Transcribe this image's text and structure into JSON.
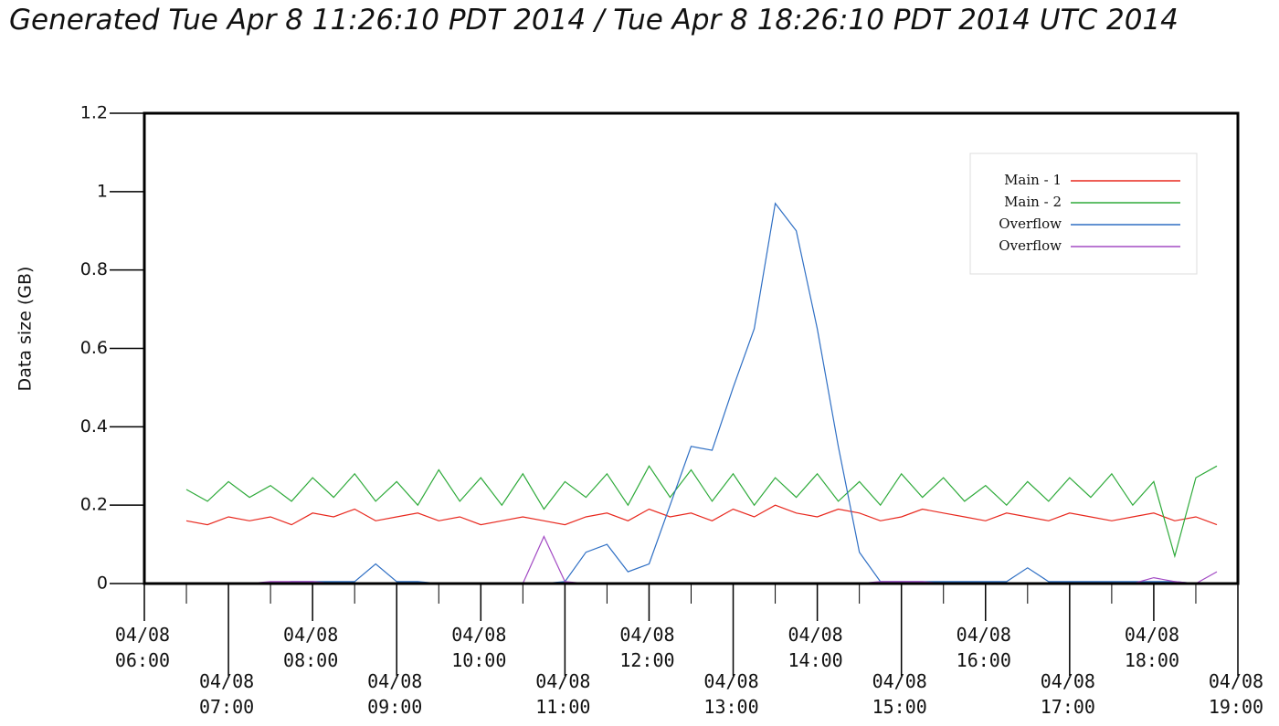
{
  "chart_data": {
    "type": "line",
    "title": "Generated Tue Apr 8 11:26:10 PDT 2014 / Tue Apr 8 18:26:10 PDT 2014 UTC 2014",
    "y_label": "Data size (GB)",
    "x": [
      6.5,
      6.75,
      7,
      7.25,
      7.5,
      7.75,
      8,
      8.25,
      8.5,
      8.75,
      9,
      9.25,
      9.5,
      9.75,
      10,
      10.25,
      10.5,
      10.75,
      11,
      11.25,
      11.5,
      11.75,
      12,
      12.25,
      12.5,
      12.75,
      13,
      13.25,
      13.5,
      13.75,
      14,
      14.25,
      14.5,
      14.75,
      15,
      15.25,
      15.5,
      15.75,
      16,
      16.25,
      16.5,
      16.75,
      17,
      17.25,
      17.5,
      17.75,
      18,
      18.25,
      18.5,
      18.75
    ],
    "series": [
      {
        "name": "Main - 1",
        "color": "#e8281e",
        "values": [
          0.16,
          0.15,
          0.17,
          0.16,
          0.17,
          0.15,
          0.18,
          0.17,
          0.19,
          0.16,
          0.17,
          0.18,
          0.16,
          0.17,
          0.15,
          0.16,
          0.17,
          0.16,
          0.15,
          0.17,
          0.18,
          0.16,
          0.19,
          0.17,
          0.18,
          0.16,
          0.19,
          0.17,
          0.2,
          0.18,
          0.17,
          0.19,
          0.18,
          0.16,
          0.17,
          0.19,
          0.18,
          0.17,
          0.16,
          0.18,
          0.17,
          0.16,
          0.18,
          0.17,
          0.16,
          0.17,
          0.18,
          0.16,
          0.17,
          0.15
        ]
      },
      {
        "name": "Main - 2",
        "color": "#2eaa3a",
        "values": [
          0.24,
          0.21,
          0.26,
          0.22,
          0.25,
          0.21,
          0.27,
          0.22,
          0.28,
          0.21,
          0.26,
          0.2,
          0.29,
          0.21,
          0.27,
          0.2,
          0.28,
          0.19,
          0.26,
          0.22,
          0.28,
          0.2,
          0.3,
          0.22,
          0.29,
          0.21,
          0.28,
          0.2,
          0.27,
          0.22,
          0.28,
          0.21,
          0.26,
          0.2,
          0.28,
          0.22,
          0.27,
          0.21,
          0.25,
          0.2,
          0.26,
          0.21,
          0.27,
          0.22,
          0.28,
          0.2,
          0.26,
          0.07,
          0.27,
          0.3
        ]
      },
      {
        "name": "Overflow",
        "color": "#2f6fc4",
        "values": [
          0,
          0,
          0,
          0,
          0,
          0.005,
          0.005,
          0.005,
          0.005,
          0.05,
          0.005,
          0.005,
          0,
          0,
          0,
          0,
          0,
          0,
          0.005,
          0.08,
          0.1,
          0.03,
          0.05,
          0.2,
          0.35,
          0.34,
          0.5,
          0.65,
          0.97,
          0.9,
          0.65,
          0.35,
          0.08,
          0.005,
          0.005,
          0.005,
          0.005,
          0.005,
          0.005,
          0.005,
          0.04,
          0.005,
          0.005,
          0.005,
          0.005,
          0.005,
          0.005,
          0.005,
          0,
          0
        ]
      },
      {
        "name": "Overflow",
        "color": "#a34bc4",
        "values": [
          0,
          0,
          0,
          0,
          0.005,
          0.005,
          0.005,
          0,
          0,
          0,
          0,
          0,
          0,
          0,
          0,
          0,
          0,
          0.12,
          0.005,
          0,
          0,
          0,
          0,
          0,
          0,
          0,
          0,
          0,
          0,
          0,
          0,
          0,
          0,
          0.005,
          0.005,
          0.005,
          0,
          0,
          0,
          0,
          0,
          0,
          0,
          0,
          0,
          0,
          0.015,
          0.005,
          0,
          0.03
        ]
      }
    ],
    "xlim": [
      6,
      19
    ],
    "ylim": [
      0,
      1.2
    ],
    "yticks": [
      0,
      0.2,
      0.4,
      0.6,
      0.8,
      1,
      1.2
    ],
    "xticks": [
      {
        "value": 6,
        "label": "04/08\n06:00"
      },
      {
        "value": 7,
        "label": "04/08\n07:00"
      },
      {
        "value": 8,
        "label": "04/08\n08:00"
      },
      {
        "value": 9,
        "label": "04/08\n09:00"
      },
      {
        "value": 10,
        "label": "04/08\n10:00"
      },
      {
        "value": 11,
        "label": "04/08\n11:00"
      },
      {
        "value": 12,
        "label": "04/08\n12:00"
      },
      {
        "value": 13,
        "label": "04/08\n13:00"
      },
      {
        "value": 14,
        "label": "04/08\n14:00"
      },
      {
        "value": 15,
        "label": "04/08\n15:00"
      },
      {
        "value": 16,
        "label": "04/08\n16:00"
      },
      {
        "value": 17,
        "label": "04/08\n17:00"
      },
      {
        "value": 18,
        "label": "04/08\n18:00"
      },
      {
        "value": 19,
        "label": "04/08\n19:00"
      }
    ],
    "xminorticks": [
      6.5,
      7.5,
      8.5,
      9.5,
      10.5,
      11.5,
      12.5,
      13.5,
      14.5,
      15.5,
      16.5,
      17.5,
      18.5
    ],
    "legend": "upper right"
  }
}
